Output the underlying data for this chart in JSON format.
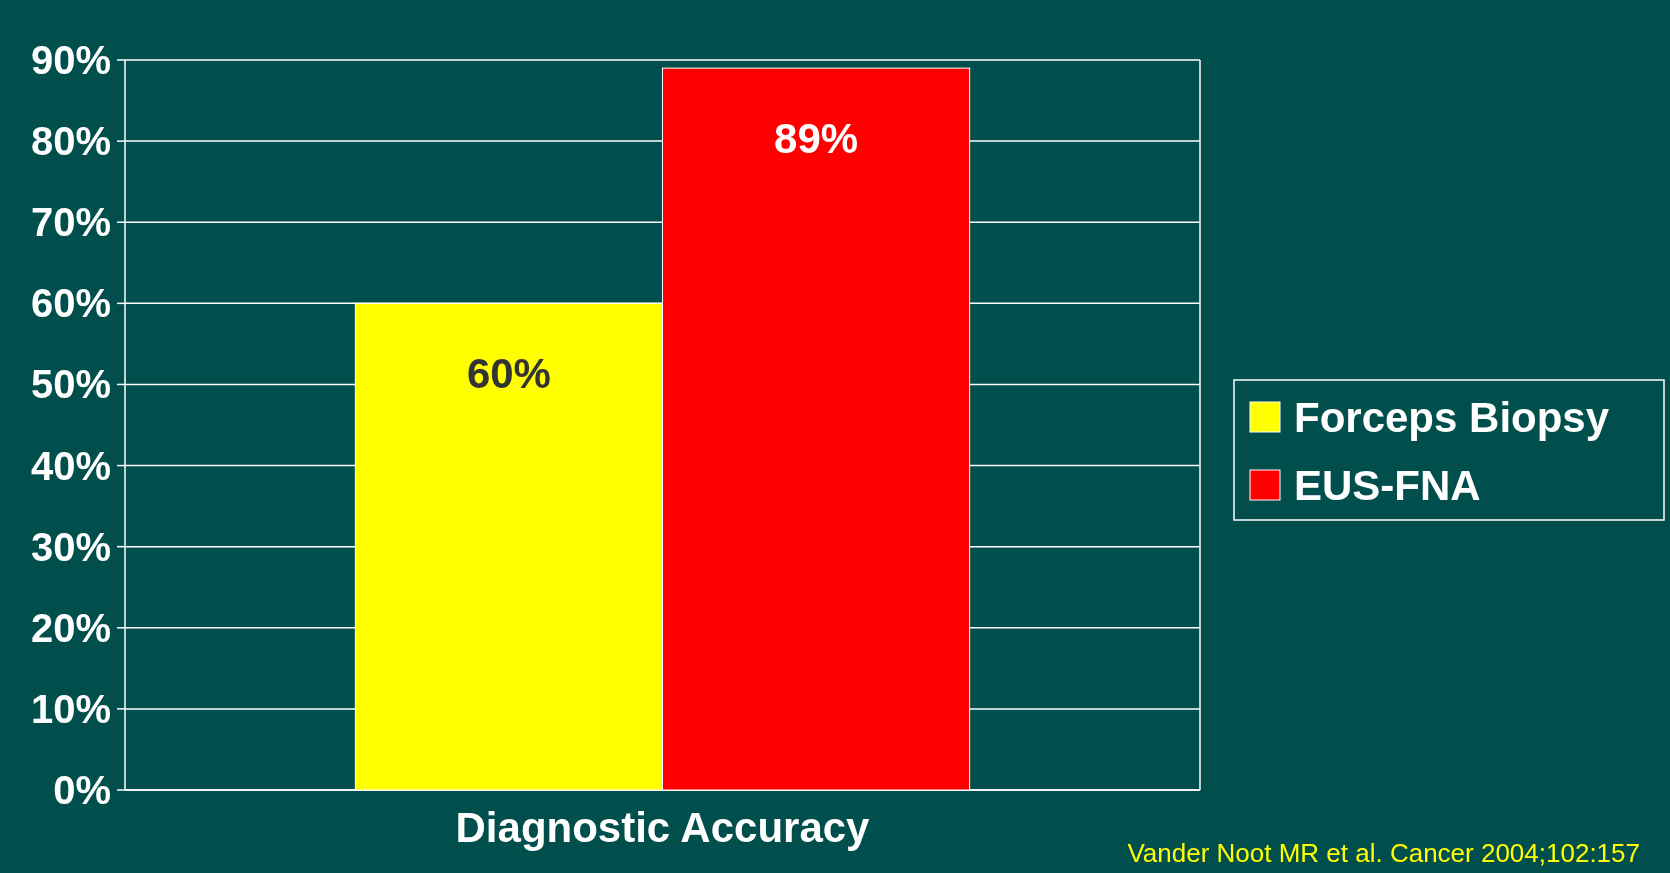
{
  "chart_data": {
    "type": "bar",
    "categories": [
      "Diagnostic Accuracy"
    ],
    "series": [
      {
        "name": "Forceps Biopsy",
        "color": "#ffff00",
        "values": [
          60
        ],
        "value_labels": [
          "60%"
        ]
      },
      {
        "name": "EUS-FNA",
        "color": "#ff0000",
        "values": [
          89
        ],
        "value_labels": [
          "89%"
        ]
      }
    ],
    "ylim": [
      0,
      90
    ],
    "yticks": [
      {
        "value": 0,
        "label": "0%"
      },
      {
        "value": 10,
        "label": "10%"
      },
      {
        "value": 20,
        "label": "20%"
      },
      {
        "value": 30,
        "label": "30%"
      },
      {
        "value": 40,
        "label": "40%"
      },
      {
        "value": 50,
        "label": "50%"
      },
      {
        "value": 60,
        "label": "60%"
      },
      {
        "value": 70,
        "label": "70%"
      },
      {
        "value": 80,
        "label": "80%"
      },
      {
        "value": 90,
        "label": "90%"
      }
    ],
    "grid": "y",
    "legend": "right",
    "annotations": [
      "Vander Noot MR et al. Cancer 2004;102:157"
    ]
  }
}
